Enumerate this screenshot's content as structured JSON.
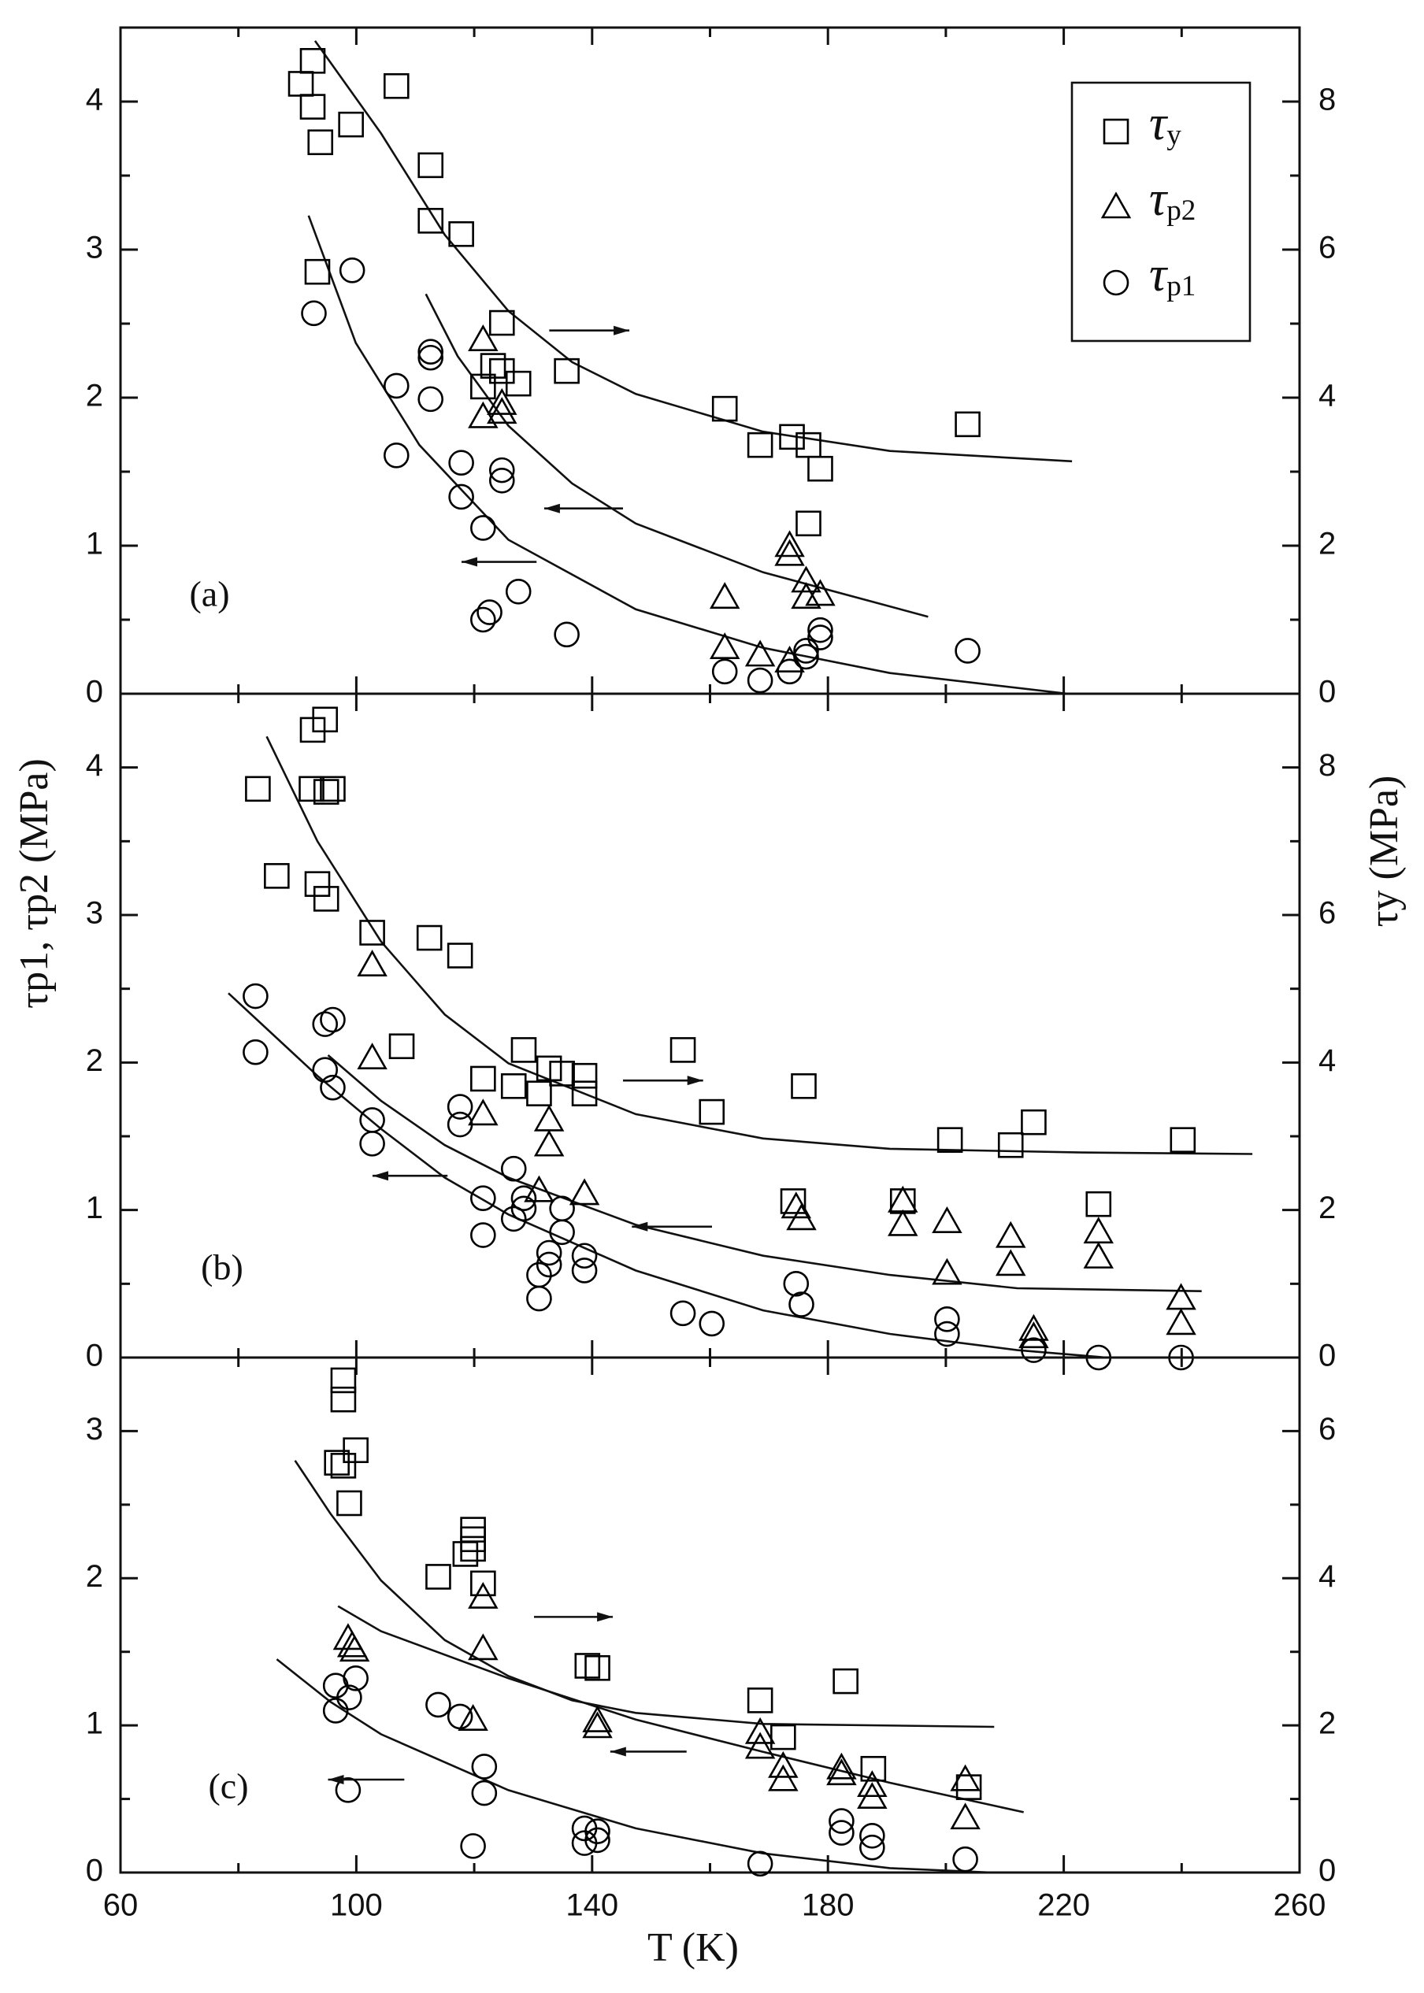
{
  "chart_data": [
    {
      "type": "scatter",
      "label": "(a)",
      "xlim": [
        60,
        260
      ],
      "xticks": [
        60,
        100,
        140,
        180,
        220,
        260
      ],
      "xtick_labels": false,
      "ylim": [
        0,
        4.5
      ],
      "yticks": [
        0,
        1,
        2,
        3,
        4
      ],
      "y2lim": [
        0,
        9
      ],
      "y2ticks": [
        0,
        2,
        4,
        6,
        8
      ],
      "legend": "upper right",
      "series": [
        {
          "name": "τy",
          "marker": "square",
          "axis": "y2",
          "color": "#000000",
          "x": [
            90.6,
            92.6,
            92.6,
            93.9,
            99.1,
            106.8,
            112.6,
            112.6,
            117.8,
            93.4,
            124.7,
            121.5,
            123.2,
            124.7,
            127.5,
            135.7,
            162.5,
            168.5,
            173.9,
            176.7,
            178.7,
            176.7,
            203.7
          ],
          "values": [
            8.24,
            8.55,
            7.93,
            7.45,
            7.69,
            8.21,
            7.14,
            6.39,
            6.21,
            5.7,
            5.01,
            4.15,
            4.43,
            4.36,
            4.19,
            4.36,
            3.85,
            3.36,
            3.47,
            3.36,
            3.04,
            2.3,
            3.64
          ]
        },
        {
          "name": "τp2",
          "marker": "triangle",
          "color": "#000000",
          "x": [
            121.5,
            121.5,
            124.7,
            124.7,
            162.5,
            162.5,
            168.5,
            173.5,
            173.5,
            176.3,
            176.3,
            178.7,
            173.5
          ],
          "values": [
            2.39,
            1.87,
            1.96,
            1.9,
            0.65,
            0.31,
            0.26,
            1.0,
            0.94,
            0.76,
            0.65,
            0.67,
            0.22
          ]
        },
        {
          "name": "τp1",
          "marker": "circle",
          "color": "#000000",
          "x": [
            92.8,
            99.3,
            106.8,
            106.8,
            112.6,
            112.6,
            112.6,
            117.8,
            117.8,
            124.7,
            124.7,
            121.5,
            121.5,
            122.6,
            127.5,
            135.7,
            162.5,
            168.5,
            173.5,
            176.3,
            176.3,
            178.7,
            178.7,
            203.7
          ],
          "values": [
            2.57,
            2.86,
            2.08,
            1.61,
            2.31,
            2.27,
            1.99,
            1.56,
            1.33,
            1.51,
            1.44,
            1.12,
            0.5,
            0.55,
            0.69,
            0.4,
            0.15,
            0.09,
            0.15,
            0.29,
            0.25,
            0.43,
            0.38,
            0.29
          ]
        }
      ],
      "fits": [
        {
          "axis": "y2",
          "x": [
            93,
            104.2,
            115,
            125.8,
            136.6,
            147.4,
            169,
            190.5,
            221.4
          ],
          "values": [
            8.82,
            7.57,
            6.2,
            5.17,
            4.48,
            4.05,
            3.54,
            3.28,
            3.14
          ]
        },
        {
          "x": [
            111.8,
            117.2,
            125.8,
            136.6,
            147.4,
            169,
            197
          ],
          "values": [
            2.7,
            2.28,
            1.81,
            1.42,
            1.15,
            0.82,
            0.52
          ]
        },
        {
          "x": [
            91.9,
            99.9,
            110.7,
            125.8,
            147.4,
            169,
            190.5,
            220.7
          ],
          "values": [
            3.23,
            2.37,
            1.68,
            1.04,
            0.57,
            0.31,
            0.14,
            0
          ]
        }
      ]
    },
    {
      "type": "scatter",
      "label": "(b)",
      "xlim": [
        60,
        260
      ],
      "xticks": [
        60,
        100,
        140,
        180,
        220,
        260
      ],
      "xtick_labels": false,
      "ylim": [
        0,
        4.5
      ],
      "yticks": [
        0,
        1,
        2,
        3,
        4
      ],
      "y2lim": [
        0,
        9
      ],
      "y2ticks": [
        0,
        2,
        4,
        6,
        8
      ],
      "ylabel": "τp1, τp2 (MPa)",
      "y2label": "τy (MPa)",
      "series": [
        {
          "marker": "square",
          "axis": "y2",
          "color": "#000000",
          "x": [
            83.3,
            86.5,
            92.6,
            94.7,
            92.4,
            94.9,
            96.0,
            93.4,
            94.9,
            102.7,
            107.7,
            112.4,
            117.6,
            121.5,
            126.7,
            128.4,
            131.0,
            132.7,
            134.9,
            138.7,
            138.7,
            155.4,
            160.3,
            175.9,
            174.1,
            192.7,
            200.7,
            211.0,
            214.9,
            225.9,
            240.2
          ],
          "values": [
            7.71,
            6.53,
            8.51,
            8.65,
            7.71,
            7.67,
            7.71,
            6.42,
            6.22,
            5.76,
            4.22,
            5.69,
            5.45,
            3.78,
            3.68,
            4.17,
            3.58,
            3.92,
            3.85,
            3.82,
            3.58,
            4.17,
            3.33,
            3.68,
            2.12,
            2.12,
            2.95,
            2.88,
            3.19,
            2.08,
            2.95
          ]
        },
        {
          "marker": "triangle",
          "color": "#000000",
          "x": [
            102.7,
            102.7,
            121.5,
            131.0,
            132.7,
            132.7,
            138.7,
            174.6,
            175.5,
            192.7,
            192.7,
            200.2,
            200.2,
            211.0,
            211.0,
            214.9,
            214.9,
            225.9,
            225.9,
            239.9,
            239.9
          ],
          "values": [
            2.66,
            2.03,
            1.65,
            1.13,
            1.61,
            1.44,
            1.11,
            1.02,
            0.94,
            1.06,
            0.9,
            0.92,
            0.57,
            0.82,
            0.63,
            0.19,
            0.14,
            0.85,
            0.68,
            0.4,
            0.23
          ]
        },
        {
          "marker": "circle",
          "color": "#000000",
          "x": [
            82.9,
            82.9,
            94.7,
            96.0,
            94.7,
            96.0,
            102.7,
            102.7,
            117.6,
            117.6,
            121.5,
            121.5,
            126.7,
            126.7,
            128.4,
            128.4,
            131.0,
            131.0,
            132.7,
            132.7,
            134.9,
            134.9,
            138.7,
            138.7,
            155.4,
            160.3,
            174.6,
            175.5,
            200.2,
            200.2,
            214.9,
            225.9,
            239.9
          ],
          "values": [
            2.45,
            2.07,
            2.26,
            2.29,
            1.95,
            1.83,
            1.61,
            1.45,
            1.7,
            1.58,
            1.08,
            0.83,
            0.94,
            1.28,
            1.08,
            1.01,
            0.56,
            0.4,
            0.71,
            0.63,
            1.01,
            0.85,
            0.69,
            0.59,
            0.3,
            0.23,
            0.5,
            0.36,
            0.26,
            0.16,
            0.05,
            0,
            0
          ]
        }
      ],
      "fits": [
        {
          "axis": "y2",
          "x": [
            84.8,
            93.4,
            104.2,
            115,
            125.8,
            147.4,
            169,
            190.5,
            222.9,
            252
          ],
          "values": [
            8.42,
            7.0,
            5.64,
            4.65,
            3.99,
            3.3,
            2.97,
            2.83,
            2.78,
            2.76
          ]
        },
        {
          "x": [
            95.2,
            104.2,
            115,
            125.8,
            147.4,
            169,
            190.5,
            212.1,
            243.4
          ],
          "values": [
            2.05,
            1.74,
            1.44,
            1.22,
            0.9,
            0.69,
            0.56,
            0.47,
            0.45
          ]
        },
        {
          "x": [
            78.3,
            93.4,
            104.2,
            115,
            125.8,
            147.4,
            169,
            190.5,
            212.1,
            227.2
          ],
          "values": [
            2.47,
            1.91,
            1.55,
            1.22,
            0.97,
            0.59,
            0.32,
            0.16,
            0.05,
            0
          ]
        }
      ]
    },
    {
      "type": "scatter",
      "label": "(c)",
      "xlim": [
        60,
        260
      ],
      "xticks": [
        60,
        100,
        140,
        180,
        220,
        260
      ],
      "xtick_labels": true,
      "xlabel": "T (K)",
      "ylim": [
        0,
        3.5
      ],
      "yticks": [
        0,
        1,
        2,
        3
      ],
      "y2lim": [
        0,
        7
      ],
      "y2ticks": [
        0,
        2,
        4,
        6
      ],
      "series": [
        {
          "marker": "square",
          "axis": "y2",
          "color": "#000000",
          "x": [
            97.8,
            97.8,
            96.7,
            97.8,
            99.9,
            98.8,
            113.9,
            118.5,
            119.8,
            119.8,
            119.8,
            121.5,
            139.2,
            140.9,
            168.5,
            172.4,
            183.0,
            187.7,
            203.9
          ],
          "values": [
            6.69,
            6.43,
            5.57,
            5.53,
            5.74,
            5.02,
            4.02,
            4.33,
            4.4,
            4.66,
            4.53,
            3.93,
            2.81,
            2.78,
            2.34,
            1.84,
            2.6,
            1.41,
            1.16
          ]
        },
        {
          "marker": "triangle",
          "color": "#000000",
          "x": [
            98.6,
            99.3,
            99.7,
            119.8,
            121.5,
            121.5,
            140.9,
            140.9,
            168.5,
            168.5,
            172.4,
            172.4,
            182.3,
            182.3,
            187.5,
            187.5,
            203.3,
            203.3
          ],
          "values": [
            1.59,
            1.54,
            1.51,
            1.04,
            1.87,
            1.52,
            1.03,
            0.99,
            0.95,
            0.85,
            0.72,
            0.63,
            0.71,
            0.67,
            0.59,
            0.51,
            0.63,
            0.37
          ]
        },
        {
          "marker": "circle",
          "color": "#000000",
          "x": [
            96.5,
            96.5,
            98.8,
            99.9,
            98.6,
            113.9,
            117.6,
            119.8,
            121.7,
            121.7,
            138.7,
            138.7,
            140.9,
            140.9,
            168.5,
            182.3,
            182.3,
            187.5,
            187.5,
            203.3
          ],
          "values": [
            1.27,
            1.1,
            1.19,
            1.32,
            0.56,
            1.14,
            1.06,
            0.18,
            0.72,
            0.54,
            0.3,
            0.2,
            0.28,
            0.22,
            0.06,
            0.35,
            0.27,
            0.25,
            0.17,
            0.09
          ]
        }
      ],
      "fits": [
        {
          "axis": "y2",
          "x": [
            89.6,
            95.6,
            104.2,
            115,
            125.8,
            136.6,
            147.4,
            169,
            208.2
          ],
          "values": [
            5.6,
            4.88,
            3.97,
            3.16,
            2.67,
            2.34,
            2.17,
            2.02,
            1.98
          ]
        },
        {
          "x": [
            96.9,
            104.2,
            125.8,
            147.4,
            169,
            190.5,
            213.2
          ],
          "values": [
            1.81,
            1.64,
            1.32,
            1.04,
            0.82,
            0.61,
            0.41
          ]
        },
        {
          "x": [
            86.5,
            95.6,
            104.2,
            125.8,
            147.4,
            169,
            190.5,
            207.8
          ],
          "values": [
            1.45,
            1.16,
            0.94,
            0.56,
            0.3,
            0.13,
            0.03,
            0
          ]
        }
      ]
    }
  ]
}
